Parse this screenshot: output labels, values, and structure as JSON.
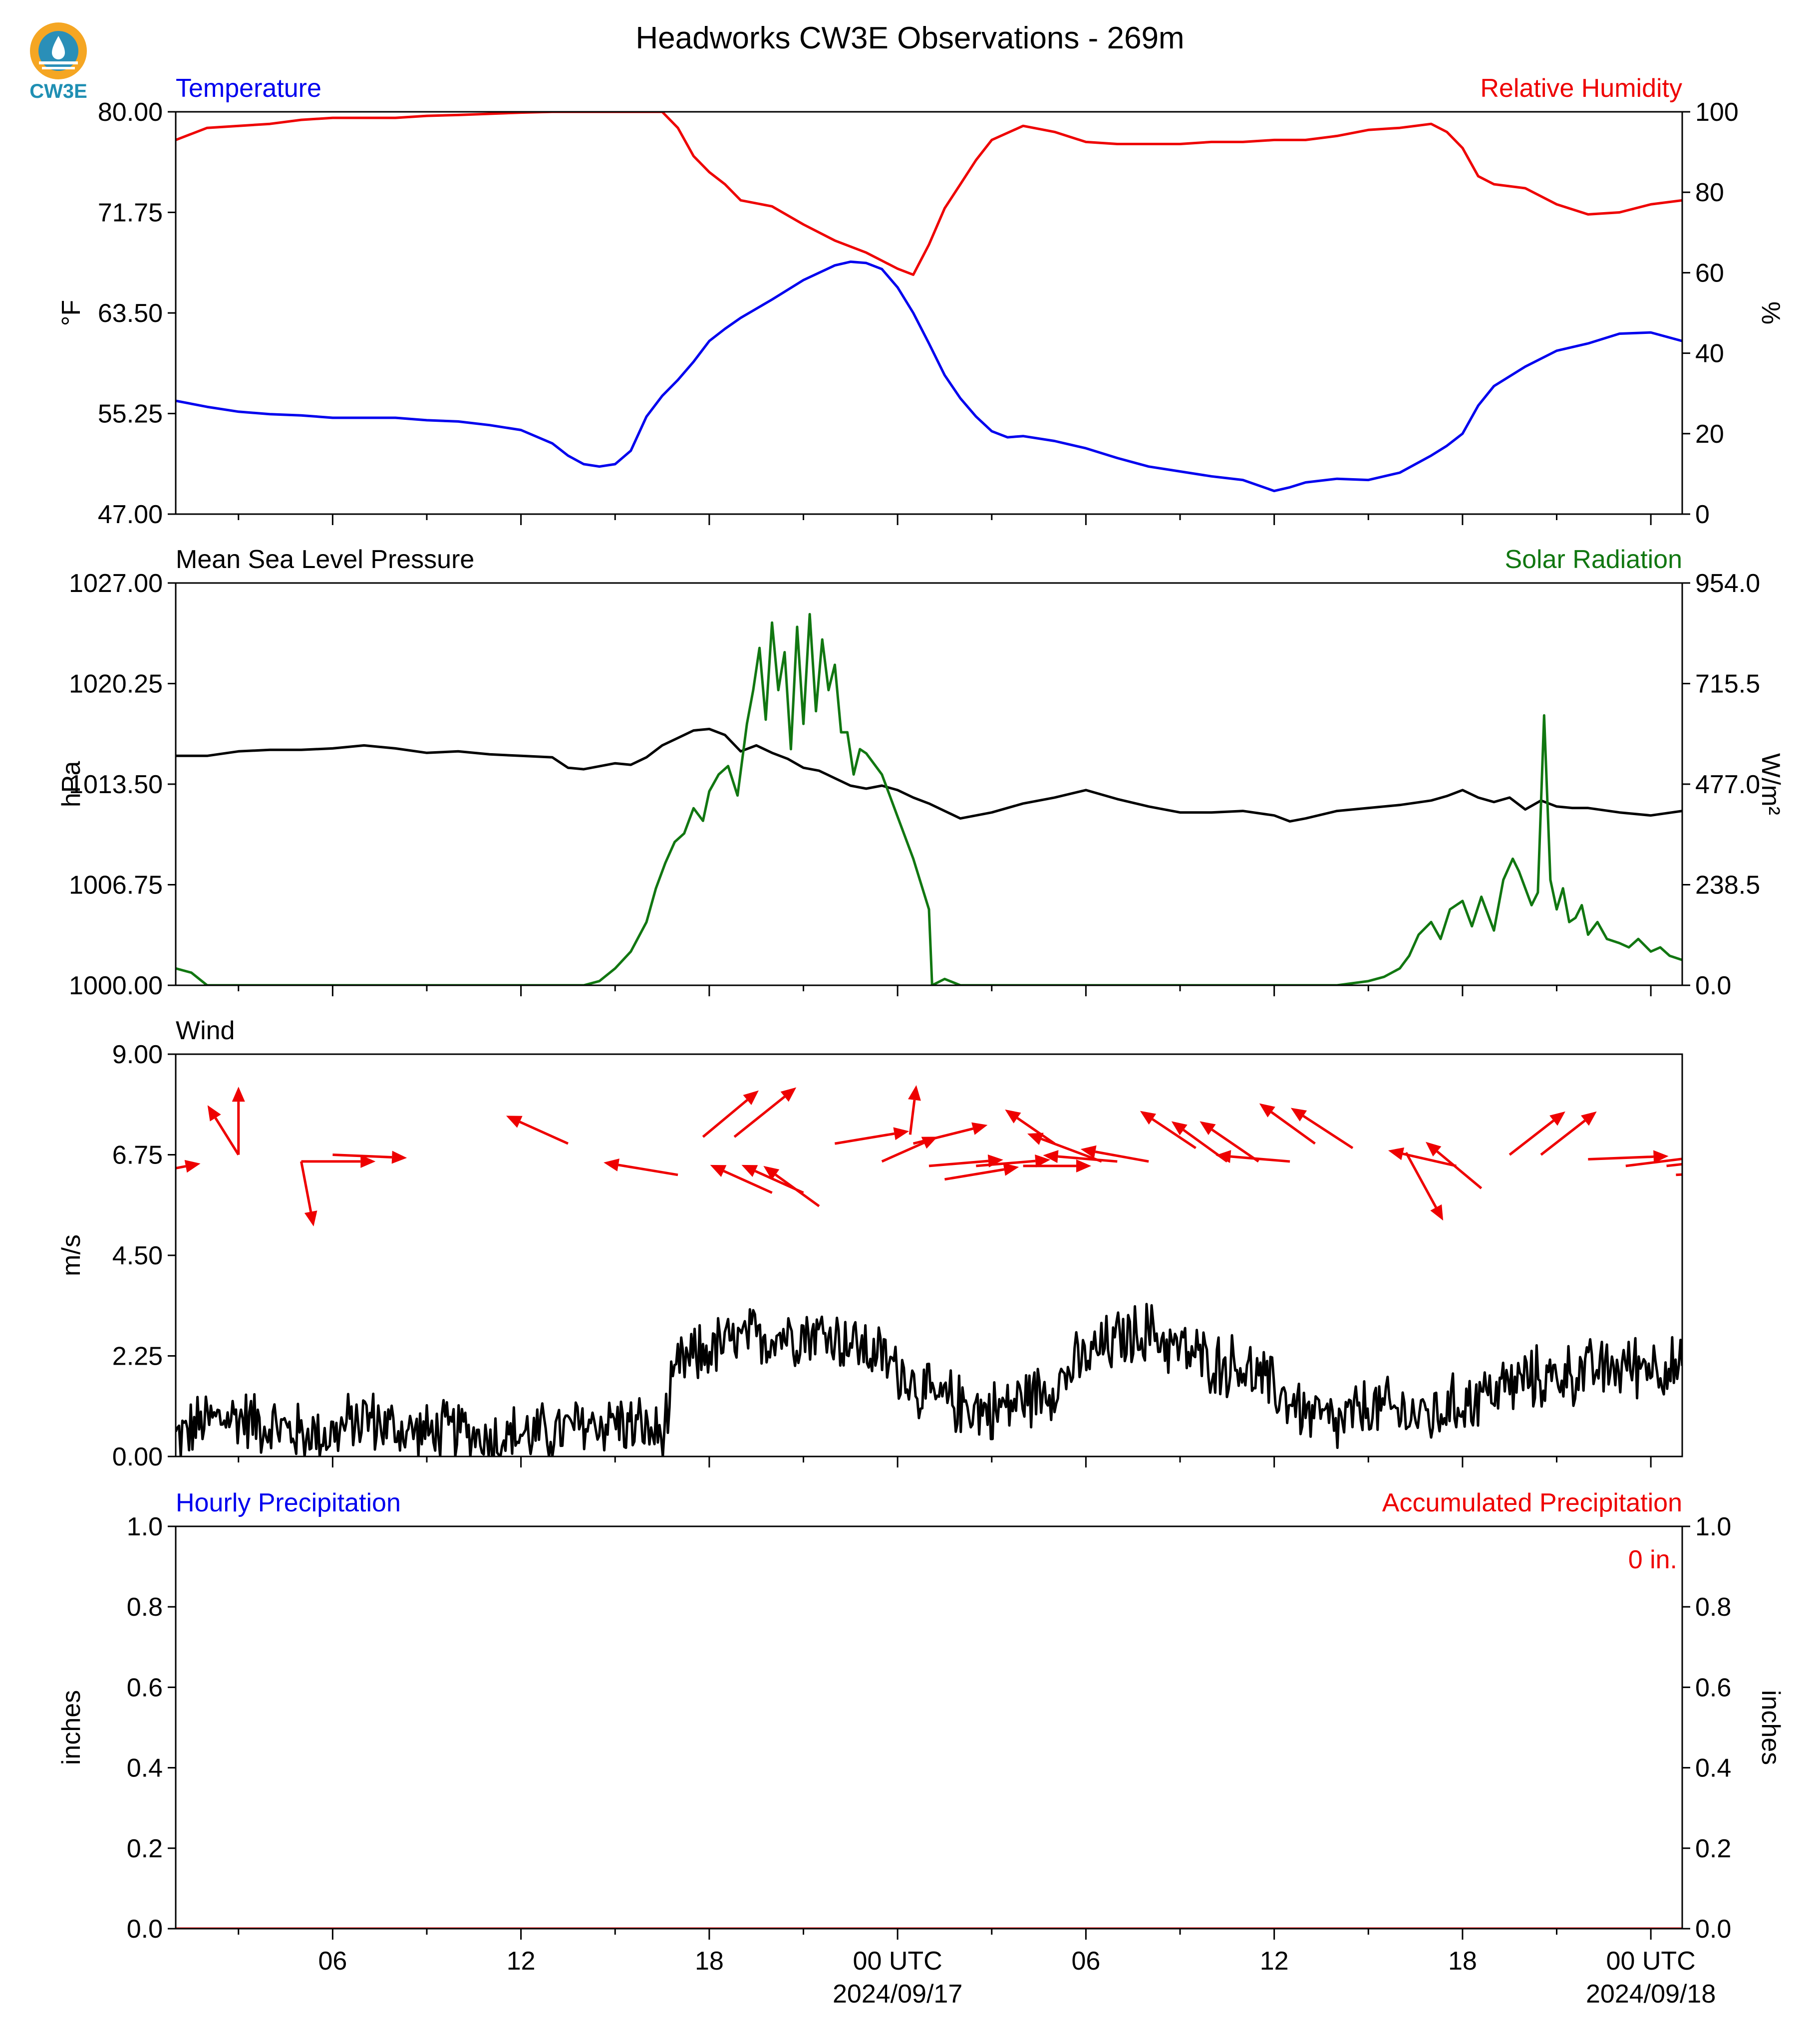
{
  "title": "Headworks CW3E Observations - 269m",
  "logo": {
    "text": "CW3E",
    "colors": {
      "ring": "#f5a623",
      "water": "#2a8fb8",
      "text": "#1f8fb3"
    }
  },
  "colors": {
    "blue": "#0000ee",
    "red": "#ee0000",
    "green": "#117711",
    "black": "#000000"
  },
  "time_axis": {
    "start_hours": 0,
    "end_hours": 48,
    "major_ticks": [
      {
        "h": 5,
        "label": "06"
      },
      {
        "h": 11,
        "label": "12"
      },
      {
        "h": 17,
        "label": "18"
      },
      {
        "h": 23,
        "label": "00 UTC",
        "date": "2024/09/17"
      },
      {
        "h": 29,
        "label": "06"
      },
      {
        "h": 35,
        "label": "12"
      },
      {
        "h": 41,
        "label": "18"
      },
      {
        "h": 47,
        "label": "00 UTC",
        "date": "2024/09/18"
      }
    ]
  },
  "chart_data": [
    {
      "type": "line",
      "title_left": "Temperature",
      "title_right": "Relative Humidity",
      "ylabel_left": "°F",
      "ylabel_right": "%",
      "ylim_left": [
        47,
        80
      ],
      "yticks_left": [
        "47.00",
        "55.25",
        "63.50",
        "71.75",
        "80.00"
      ],
      "ylim_right": [
        0,
        100
      ],
      "yticks_right": [
        "0",
        "20",
        "40",
        "60",
        "80",
        "100"
      ],
      "series": [
        {
          "name": "Temperature",
          "axis": "left",
          "color": "#0000ee",
          "x": [
            0,
            1,
            2,
            3,
            4,
            5,
            6,
            7,
            8,
            9,
            10,
            11,
            12,
            12.5,
            13,
            13.5,
            14,
            14.5,
            15,
            15.5,
            16,
            16.5,
            17,
            17.5,
            18,
            19,
            20,
            21,
            21.5,
            22,
            22.5,
            23,
            23.5,
            24,
            24.5,
            25,
            25.5,
            26,
            26.5,
            27,
            28,
            29,
            30,
            31,
            32,
            33,
            34,
            35,
            35.5,
            36,
            37,
            38,
            39,
            40,
            40.5,
            41,
            41.5,
            42,
            43,
            44,
            45,
            46,
            47,
            48
          ],
          "y": [
            56.3,
            55.8,
            55.4,
            55.2,
            55.1,
            54.9,
            54.9,
            54.9,
            54.7,
            54.6,
            54.3,
            53.9,
            52.8,
            51.8,
            51.1,
            50.9,
            51.1,
            52.2,
            55,
            56.7,
            58,
            59.5,
            61.2,
            62.2,
            63.1,
            64.6,
            66.2,
            67.4,
            67.7,
            67.6,
            67.1,
            65.6,
            63.5,
            61,
            58.4,
            56.5,
            55,
            53.8,
            53.3,
            53.4,
            53,
            52.4,
            51.6,
            50.9,
            50.5,
            50.1,
            49.8,
            48.9,
            49.2,
            49.6,
            49.9,
            49.8,
            50.4,
            51.8,
            52.6,
            53.6,
            55.9,
            57.5,
            59.1,
            60.4,
            61,
            61.8,
            61.9,
            61.2
          ]
        },
        {
          "name": "Relative Humidity",
          "axis": "right",
          "color": "#ee0000",
          "x": [
            0,
            1,
            2,
            3,
            4,
            5,
            6,
            7,
            8,
            9,
            10,
            11,
            12,
            13,
            14,
            15,
            15.5,
            16,
            16.5,
            17,
            17.5,
            18,
            19,
            20,
            21,
            22,
            22.5,
            23,
            23.5,
            24,
            24.5,
            25,
            25.5,
            26,
            27,
            28,
            29,
            30,
            31,
            32,
            33,
            34,
            35,
            36,
            37,
            38,
            39,
            40,
            40.5,
            41,
            41.5,
            42,
            43,
            44,
            45,
            46,
            47,
            48
          ],
          "y": [
            93,
            96,
            96.5,
            97,
            98,
            98.5,
            98.5,
            98.5,
            99,
            99.2,
            99.5,
            99.8,
            100,
            100,
            100,
            100,
            100,
            96,
            89,
            85,
            82,
            78,
            76.5,
            72,
            68,
            65,
            63,
            61,
            59.5,
            67,
            76,
            82,
            88,
            93,
            96.5,
            95,
            92.5,
            92,
            92,
            92,
            92.5,
            92.5,
            93,
            93,
            94,
            95.5,
            96,
            97,
            95,
            91,
            84,
            82,
            81,
            77,
            74.5,
            75,
            77,
            78
          ]
        }
      ]
    },
    {
      "type": "line",
      "title_left": "Mean Sea Level Pressure",
      "title_right": "Solar Radiation",
      "ylabel_left": "hPa",
      "ylabel_right": "W/m²",
      "ylim_left": [
        1000,
        1027
      ],
      "yticks_left": [
        "1000.00",
        "1006.75",
        "1013.50",
        "1020.25",
        "1027.00"
      ],
      "ylim_right": [
        0,
        954
      ],
      "yticks_right": [
        "0.0",
        "238.5",
        "477.0",
        "715.5",
        "954.0"
      ],
      "series": [
        {
          "name": "Mean Sea Level Pressure",
          "axis": "left",
          "color": "#000000",
          "x": [
            0,
            1,
            2,
            3,
            4,
            5,
            6,
            7,
            8,
            9,
            10,
            11,
            12,
            12.5,
            13,
            14,
            14.5,
            15,
            15.5,
            16,
            16.5,
            17,
            17.5,
            18,
            18.5,
            19,
            19.5,
            20,
            20.5,
            21,
            21.5,
            22,
            22.5,
            23,
            23.5,
            24,
            24.5,
            25,
            26,
            27,
            28,
            29,
            30,
            31,
            32,
            33,
            34,
            35,
            35.5,
            36,
            37,
            38,
            39,
            40,
            40.5,
            41,
            41.5,
            42,
            42.5,
            43,
            43.5,
            44,
            44.5,
            45,
            46,
            47,
            48
          ],
          "y": [
            1015.4,
            1015.4,
            1015.7,
            1015.8,
            1015.8,
            1015.9,
            1016.1,
            1015.9,
            1015.6,
            1015.7,
            1015.5,
            1015.4,
            1015.3,
            1014.6,
            1014.5,
            1014.9,
            1014.8,
            1015.3,
            1016.1,
            1016.6,
            1017.1,
            1017.2,
            1016.8,
            1015.7,
            1016.1,
            1015.6,
            1015.2,
            1014.6,
            1014.4,
            1013.9,
            1013.4,
            1013.2,
            1013.4,
            1013.1,
            1012.6,
            1012.2,
            1011.7,
            1011.2,
            1011.6,
            1012.2,
            1012.6,
            1013.1,
            1012.5,
            1012.0,
            1011.6,
            1011.6,
            1011.7,
            1011.4,
            1011.0,
            1011.2,
            1011.7,
            1011.9,
            1012.1,
            1012.4,
            1012.7,
            1013.1,
            1012.6,
            1012.3,
            1012.6,
            1011.8,
            1012.4,
            1012.0,
            1011.9,
            1011.9,
            1011.6,
            1011.4,
            1011.7
          ]
        },
        {
          "name": "Solar Radiation",
          "axis": "right",
          "color": "#117711",
          "x": [
            0,
            0.5,
            1,
            5,
            10,
            13,
            13.5,
            14,
            14.5,
            15,
            15.3,
            15.6,
            15.9,
            16.2,
            16.5,
            16.8,
            17,
            17.3,
            17.6,
            17.9,
            18.2,
            18.4,
            18.6,
            18.8,
            19,
            19.2,
            19.4,
            19.6,
            19.8,
            20,
            20.2,
            20.4,
            20.6,
            20.8,
            21,
            21.2,
            21.4,
            21.6,
            21.8,
            22,
            22.5,
            23,
            23.5,
            24,
            24.1,
            24.5,
            25,
            25.5,
            26,
            30,
            35,
            37,
            38,
            38.5,
            39,
            39.3,
            39.6,
            40,
            40.3,
            40.6,
            41,
            41.3,
            41.6,
            42,
            42.3,
            42.6,
            42.8,
            43,
            43.2,
            43.4,
            43.6,
            43.8,
            44,
            44.2,
            44.4,
            44.6,
            44.8,
            45,
            45.3,
            45.6,
            46,
            46.3,
            46.6,
            47,
            47.3,
            47.6,
            48
          ],
          "y": [
            40,
            30,
            0,
            0,
            0,
            0,
            10,
            40,
            80,
            150,
            230,
            290,
            340,
            360,
            420,
            390,
            460,
            500,
            520,
            450,
            620,
            700,
            800,
            630,
            860,
            700,
            790,
            560,
            850,
            620,
            880,
            650,
            820,
            700,
            760,
            600,
            600,
            500,
            560,
            550,
            500,
            400,
            300,
            180,
            0,
            15,
            0,
            0,
            0,
            0,
            0,
            0,
            10,
            20,
            40,
            70,
            120,
            150,
            110,
            180,
            200,
            140,
            210,
            130,
            250,
            300,
            270,
            230,
            190,
            220,
            640,
            250,
            180,
            230,
            150,
            160,
            190,
            120,
            150,
            110,
            100,
            90,
            110,
            80,
            90,
            70,
            60
          ]
        }
      ]
    },
    {
      "type": "line",
      "title_left": "Wind",
      "ylabel_left": "m/s",
      "ylim_left": [
        0,
        9
      ],
      "yticks_left": [
        "0.00",
        "2.25",
        "4.50",
        "6.75",
        "9.00"
      ],
      "series": [
        {
          "name": "Wind Speed",
          "axis": "left",
          "color": "#000000",
          "noise": 0.6,
          "x": [
            0,
            1,
            2,
            3,
            4,
            5,
            6,
            7,
            8,
            9,
            10,
            11,
            12,
            13,
            14,
            15,
            15.5,
            16,
            17,
            18,
            19,
            20,
            21,
            22,
            23,
            24,
            25,
            26,
            27,
            28,
            29,
            30,
            31,
            32,
            33,
            34,
            35,
            36,
            37,
            38,
            39,
            40,
            41,
            42,
            43,
            44,
            45,
            46,
            47,
            48
          ],
          "y": [
            0.4,
            0.8,
            0.9,
            0.7,
            0.5,
            0.5,
            0.9,
            0.6,
            0.5,
            0.6,
            0.4,
            0.5,
            0.5,
            0.7,
            0.8,
            0.6,
            0.4,
            2.0,
            2.4,
            2.6,
            2.7,
            2.8,
            2.7,
            2.4,
            2.0,
            1.3,
            1.2,
            1.0,
            1.3,
            1.6,
            2.2,
            2.6,
            2.8,
            2.4,
            2.1,
            2.0,
            1.5,
            1.0,
            0.7,
            1.1,
            1.0,
            0.9,
            1.2,
            1.5,
            1.7,
            1.8,
            1.9,
            2.0,
            2.1,
            1.9
          ]
        }
      ],
      "wind_vectors": {
        "color": "#ee0000",
        "arrows": [
          {
            "t": 0.0,
            "y": 6.45,
            "dx": 0.8,
            "dy": 0.15
          },
          {
            "t": 2.0,
            "y": 6.75,
            "dx": -1.0,
            "dy": 1.6
          },
          {
            "t": 2.0,
            "y": 6.75,
            "dx": 0.0,
            "dy": 2.2
          },
          {
            "t": 4.0,
            "y": 6.6,
            "dx": 0.4,
            "dy": -2.1
          },
          {
            "t": 4.0,
            "y": 6.6,
            "dx": 2.4,
            "dy": 0.0
          },
          {
            "t": 5.0,
            "y": 6.75,
            "dx": 2.4,
            "dy": -0.1
          },
          {
            "t": 12.5,
            "y": 7.0,
            "dx": -2.0,
            "dy": 0.9
          },
          {
            "t": 16.0,
            "y": 6.3,
            "dx": -2.4,
            "dy": 0.4
          },
          {
            "t": 16.8,
            "y": 7.15,
            "dx": 1.8,
            "dy": 1.5
          },
          {
            "t": 17.8,
            "y": 7.15,
            "dx": 2.0,
            "dy": 1.6
          },
          {
            "t": 19.0,
            "y": 5.9,
            "dx": -2.0,
            "dy": 0.9
          },
          {
            "t": 20.0,
            "y": 5.9,
            "dx": -2.0,
            "dy": 0.9
          },
          {
            "t": 20.5,
            "y": 5.6,
            "dx": -1.8,
            "dy": 1.3
          },
          {
            "t": 21.0,
            "y": 7.0,
            "dx": 2.4,
            "dy": 0.4
          },
          {
            "t": 22.5,
            "y": 6.6,
            "dx": 1.8,
            "dy": 0.8
          },
          {
            "t": 23.5,
            "y": 7.0,
            "dx": 2.4,
            "dy": 0.6
          },
          {
            "t": 23.4,
            "y": 7.2,
            "dx": 0.2,
            "dy": 1.6
          },
          {
            "t": 24.0,
            "y": 6.5,
            "dx": 2.4,
            "dy": 0.2
          },
          {
            "t": 24.5,
            "y": 6.2,
            "dx": 2.4,
            "dy": 0.4
          },
          {
            "t": 25.5,
            "y": 6.5,
            "dx": 2.4,
            "dy": 0.2
          },
          {
            "t": 27.0,
            "y": 6.5,
            "dx": 2.2,
            "dy": 0.0
          },
          {
            "t": 28.0,
            "y": 7.0,
            "dx": -1.6,
            "dy": 1.1
          },
          {
            "t": 29.5,
            "y": 6.6,
            "dx": -2.4,
            "dy": 0.9
          },
          {
            "t": 30.0,
            "y": 6.6,
            "dx": -2.4,
            "dy": 0.2
          },
          {
            "t": 31.0,
            "y": 6.6,
            "dx": -2.2,
            "dy": 0.4
          },
          {
            "t": 32.5,
            "y": 6.9,
            "dx": -1.8,
            "dy": 1.2
          },
          {
            "t": 33.5,
            "y": 6.6,
            "dx": -1.8,
            "dy": 1.3
          },
          {
            "t": 34.5,
            "y": 6.6,
            "dx": -1.9,
            "dy": 1.3
          },
          {
            "t": 35.5,
            "y": 6.6,
            "dx": -2.4,
            "dy": 0.2
          },
          {
            "t": 36.3,
            "y": 7.0,
            "dx": -1.8,
            "dy": 1.3
          },
          {
            "t": 37.5,
            "y": 6.9,
            "dx": -2.0,
            "dy": 1.3
          },
          {
            "t": 39.2,
            "y": 6.8,
            "dx": 1.2,
            "dy": -2.2
          },
          {
            "t": 40.8,
            "y": 6.5,
            "dx": -2.2,
            "dy": 0.5
          },
          {
            "t": 41.6,
            "y": 6.0,
            "dx": -1.8,
            "dy": 1.5
          },
          {
            "t": 42.5,
            "y": 6.75,
            "dx": 1.8,
            "dy": 1.4
          },
          {
            "t": 43.5,
            "y": 6.75,
            "dx": 1.8,
            "dy": 1.4
          },
          {
            "t": 45.0,
            "y": 6.65,
            "dx": 2.6,
            "dy": 0.1
          },
          {
            "t": 46.2,
            "y": 6.5,
            "dx": 2.4,
            "dy": 0.3
          },
          {
            "t": 47.5,
            "y": 6.5,
            "dx": 1.8,
            "dy": 0.2
          },
          {
            "t": 47.8,
            "y": 6.3,
            "dx": 2.0,
            "dy": 0.1
          }
        ]
      }
    },
    {
      "type": "line",
      "title_left": "Hourly Precipitation",
      "title_right": "Accumulated Precipitation",
      "ylabel_left": "inches",
      "ylabel_right": "inches",
      "ylim_left": [
        0,
        1
      ],
      "yticks_left": [
        "0.0",
        "0.2",
        "0.4",
        "0.6",
        "0.8",
        "1.0"
      ],
      "ylim_right": [
        0,
        1
      ],
      "yticks_right": [
        "0.0",
        "0.2",
        "0.4",
        "0.6",
        "0.8",
        "1.0"
      ],
      "annotation": "0 in.",
      "series": [
        {
          "name": "Accumulated Precipitation",
          "axis": "right",
          "color": "#ee0000",
          "x": [
            0,
            48
          ],
          "y": [
            0,
            0
          ]
        }
      ]
    }
  ]
}
